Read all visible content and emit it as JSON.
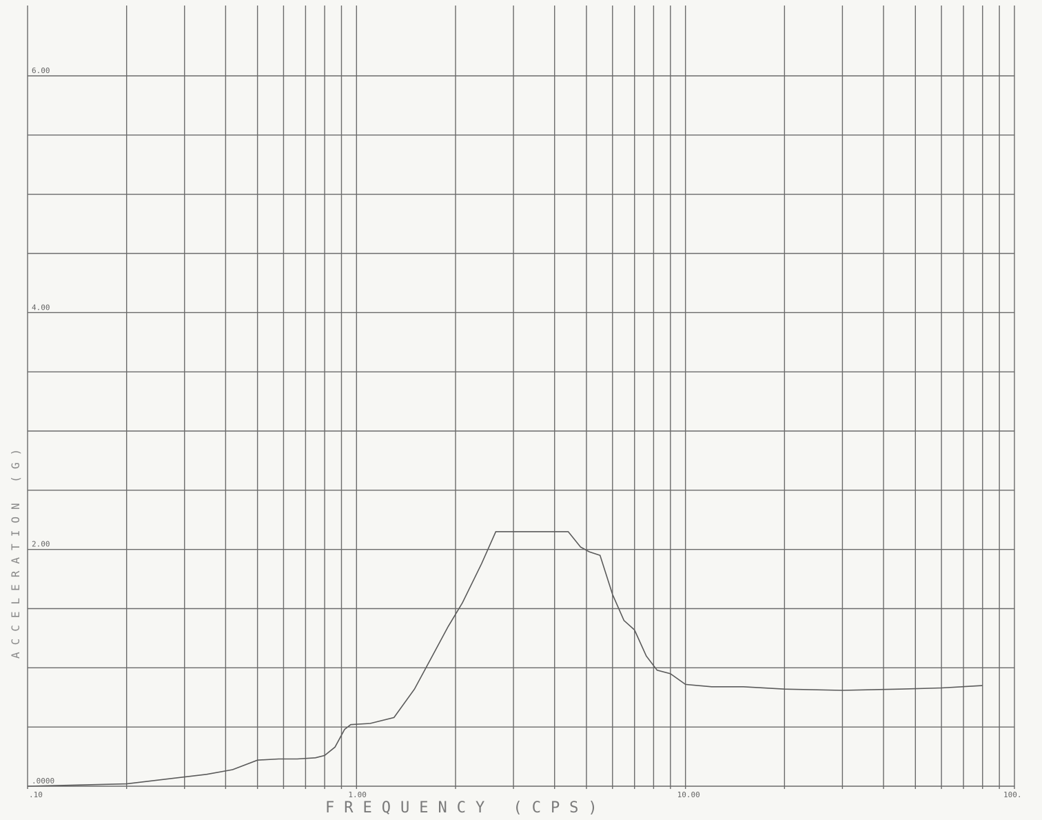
{
  "chart_data": {
    "type": "line",
    "xscale": "log",
    "xlim": [
      0.1,
      100
    ],
    "ylim": [
      0,
      6
    ],
    "grid": true,
    "xlabel": "FREQUENCY (CPS)",
    "ylabel": "ACCELERATION (G)",
    "x_tick_labels": [
      {
        "value": 0.1,
        "label": ".10"
      },
      {
        "value": 1,
        "label": "1.00"
      },
      {
        "value": 10,
        "label": "10.00"
      },
      {
        "value": 100,
        "label": "100."
      }
    ],
    "y_tick_labels": [
      {
        "value": 0,
        "label": ".0000"
      },
      {
        "value": 2,
        "label": "2.00"
      },
      {
        "value": 4,
        "label": "4.00"
      },
      {
        "value": 6,
        "label": "6.00"
      }
    ],
    "series": [
      {
        "x": [
          0.1,
          0.2,
          0.35,
          0.42,
          0.5,
          0.58,
          0.66,
          0.75,
          0.8,
          0.86,
          0.92,
          0.96,
          1.1,
          1.3,
          1.5,
          1.7,
          1.9,
          2.1,
          2.4,
          2.65,
          3.0,
          3.5,
          4.0,
          4.4,
          4.8,
          5.1,
          5.5,
          6.0,
          6.5,
          7.0,
          7.6,
          8.2,
          9.0,
          10.0,
          12.0,
          15.0,
          20.0,
          30.0,
          45.0,
          60.0,
          80.0
        ],
        "y": [
          0.0,
          0.02,
          0.1,
          0.14,
          0.22,
          0.23,
          0.23,
          0.24,
          0.26,
          0.33,
          0.48,
          0.52,
          0.53,
          0.58,
          0.82,
          1.1,
          1.35,
          1.55,
          1.88,
          2.15,
          2.15,
          2.15,
          2.15,
          2.15,
          2.02,
          1.98,
          1.95,
          1.62,
          1.4,
          1.32,
          1.1,
          0.98,
          0.95,
          0.86,
          0.84,
          0.84,
          0.82,
          0.81,
          0.82,
          0.83,
          0.85
        ]
      }
    ]
  }
}
